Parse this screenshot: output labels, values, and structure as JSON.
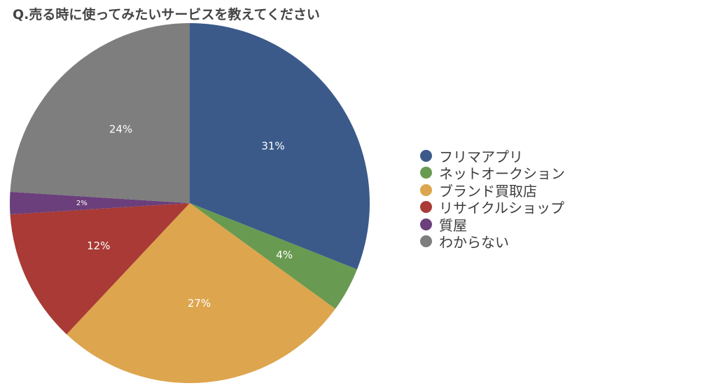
{
  "chart_data": {
    "type": "pie",
    "title": "Q.売る時に使ってみたいサービスを教えてください",
    "slices": [
      {
        "label": "フリマアプリ",
        "value": 31,
        "value_label": "31%",
        "color": "#3b5a8a"
      },
      {
        "label": "ネットオークション",
        "value": 4,
        "value_label": "4%",
        "color": "#699a51"
      },
      {
        "label": "ブランド買取店",
        "value": 27,
        "value_label": "27%",
        "color": "#dda54d"
      },
      {
        "label": "リサイクルショップ",
        "value": 12,
        "value_label": "12%",
        "color": "#a93a36"
      },
      {
        "label": "質屋",
        "value": 2,
        "value_label": "2%",
        "color": "#6b3f7b"
      },
      {
        "label": "わからない",
        "value": 24,
        "value_label": "24%",
        "color": "#7d7e7d"
      }
    ],
    "legend_position": "right",
    "start_angle": "12 o'clock",
    "direction": "clockwise"
  }
}
